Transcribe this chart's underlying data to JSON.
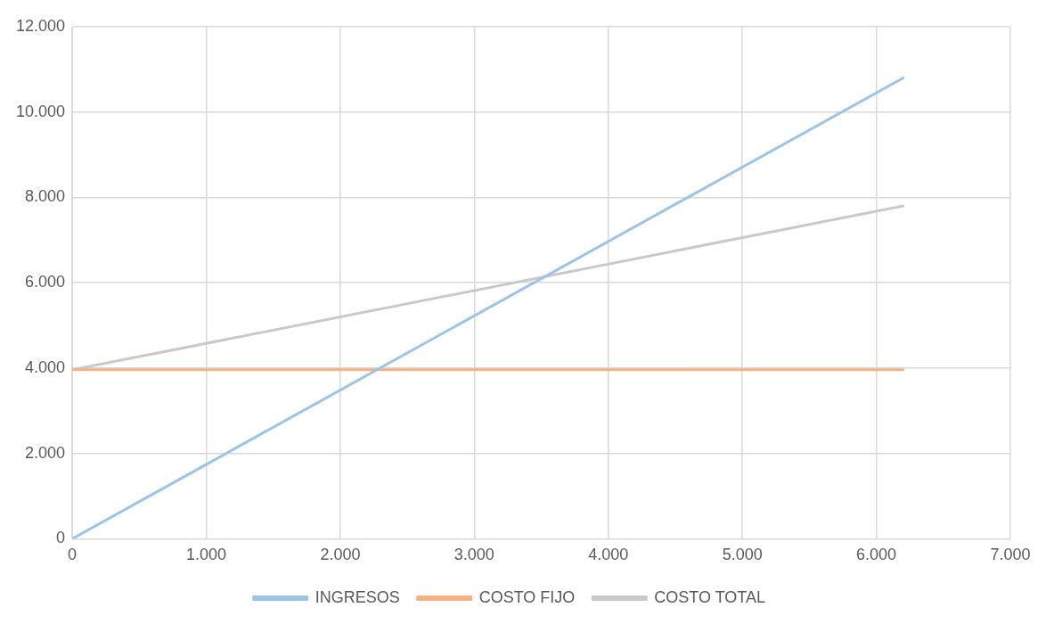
{
  "chart_data": {
    "type": "line",
    "x": [
      0,
      6200
    ],
    "series": [
      {
        "name": "INGRESOS",
        "color": "#9dc3e6",
        "values": [
          0,
          10800
        ]
      },
      {
        "name": "COSTO FIJO",
        "color": "#f4b183",
        "values": [
          3960,
          3960
        ]
      },
      {
        "name": "COSTO TOTAL",
        "color": "#c9c9c9",
        "values": [
          3960,
          7800
        ]
      }
    ],
    "xlim": [
      0,
      7000
    ],
    "xticks": [
      0,
      {
        "value": 1000,
        "label": "1.000"
      },
      {
        "value": 2000,
        "label": "2.000"
      },
      {
        "value": 3000,
        "label": "3.000"
      },
      {
        "value": 4000,
        "label": "4.000"
      },
      {
        "value": 5000,
        "label": "5.000"
      },
      {
        "value": 6000,
        "label": "6.000"
      },
      {
        "value": 7000,
        "label": "7.000"
      }
    ],
    "ylim": [
      0,
      12000
    ],
    "yticks": [
      0,
      {
        "value": 2000,
        "label": "2.000"
      },
      {
        "value": 4000,
        "label": "4.000"
      },
      {
        "value": 6000,
        "label": "6.000"
      },
      {
        "value": 8000,
        "label": "8.000"
      },
      {
        "value": 10000,
        "label": "10.000"
      },
      {
        "value": 12000,
        "label": "12.000"
      }
    ],
    "grid": true,
    "legend": "bottom",
    "marker": "none",
    "line_style": "solid"
  }
}
